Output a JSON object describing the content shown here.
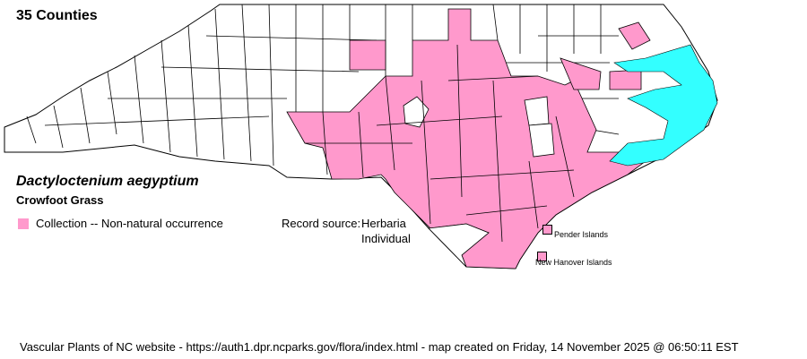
{
  "header": {
    "county_count": "35 Counties"
  },
  "species": {
    "scientific_name": "Dactyloctenium aegyptium",
    "common_name": "Crowfoot Grass"
  },
  "legend": {
    "items": [
      {
        "label": "Collection -- Non-natural occurrence",
        "color": "#ff99cc"
      }
    ]
  },
  "record_source": {
    "label": "Record source:",
    "values": [
      "Herbaria",
      "Individual"
    ]
  },
  "islands": [
    {
      "label": "Pender Islands",
      "present": true
    },
    {
      "label": "New Hanover Islands",
      "present": true
    }
  ],
  "map": {
    "state": "North Carolina",
    "present_color": "#ff99cc",
    "water_color": "#33ffff",
    "absent_color": "#ffffff"
  },
  "footer": "Vascular Plants of NC website - https://auth1.dpr.ncparks.gov/flora/index.html - map created on Friday, 14 November 2025 @ 06:50:11 EST"
}
